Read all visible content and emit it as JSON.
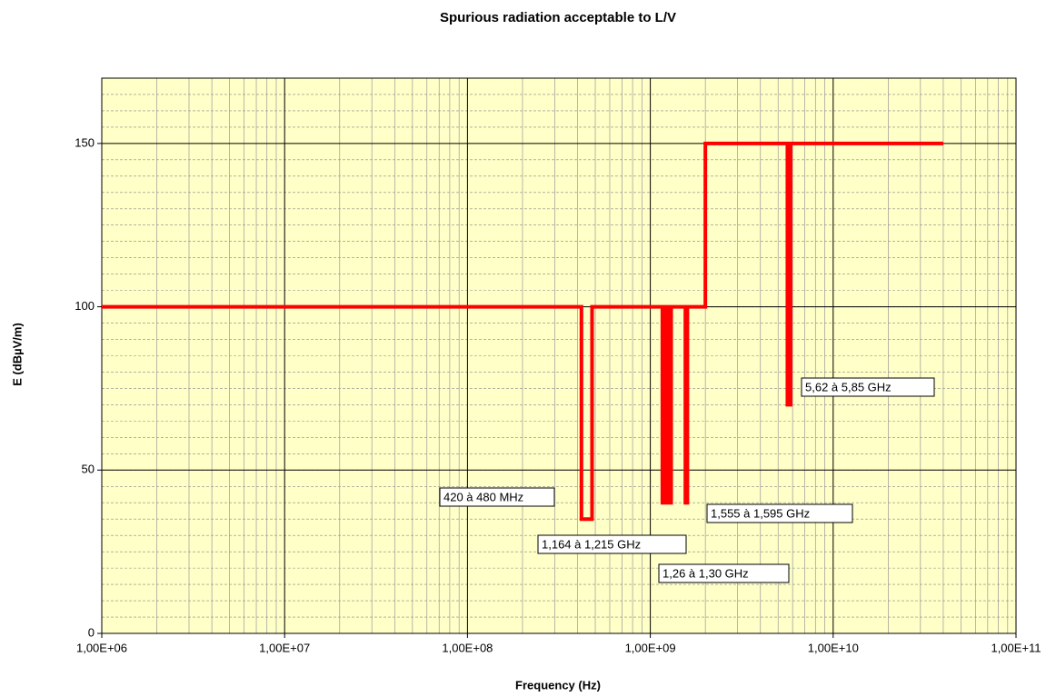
{
  "chart_data": {
    "type": "line",
    "title": "Spurious radiation acceptable to L/V",
    "x_label": "Frequency (Hz)",
    "y_label": "E (dBµV/m)",
    "log_x": true,
    "grid": true,
    "xlim": [
      1000000,
      100000000000
    ],
    "xticks": [
      {
        "value": 1000000,
        "label": "1,00E+06"
      },
      {
        "value": 10000000,
        "label": "1,00E+07"
      },
      {
        "value": 100000000,
        "label": "1,00E+08"
      },
      {
        "value": 1000000000,
        "label": "1,00E+09"
      },
      {
        "value": 10000000000,
        "label": "1,00E+10"
      },
      {
        "value": 100000000000,
        "label": "1,00E+11"
      }
    ],
    "ylim": [
      0,
      170
    ],
    "yticks": [
      0,
      50,
      100,
      150
    ],
    "series": [
      {
        "color": "#ff0000",
        "x": [
          1000000,
          420000000,
          420000000,
          480000000,
          480000000,
          1164000000,
          1164000000,
          1215000000,
          1215000000,
          1260000000,
          1260000000,
          1300000000,
          1300000000,
          1555000000,
          1555000000,
          1595000000,
          1595000000,
          2000000000,
          2000000000,
          5620000000,
          5620000000,
          5850000000,
          5850000000,
          40000000000
        ],
        "values": [
          100,
          100,
          35,
          35,
          100,
          100,
          40,
          40,
          100,
          100,
          40,
          40,
          100,
          100,
          40,
          40,
          100,
          100,
          150,
          150,
          70,
          70,
          150,
          150
        ]
      }
    ],
    "annotations": [
      "420 à 480 MHz",
      "1,164 à 1,215 GHz",
      "1,26 à 1,30 GHz",
      "1,555 à 1,595 GHz",
      "5,62 à 5,85 GHz"
    ]
  }
}
